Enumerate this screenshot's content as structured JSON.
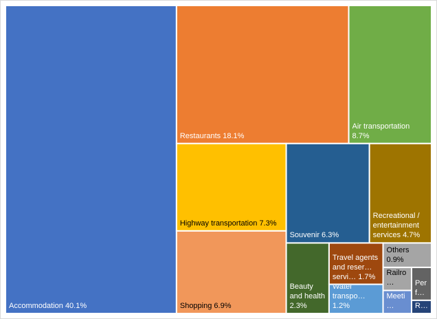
{
  "chart_data": {
    "type": "treemap",
    "categories": [
      "Accommodation",
      "Restaurants",
      "Air transportation",
      "Highway transportation",
      "Shopping",
      "Souvenir",
      "Recreational / entertainment services",
      "Beauty and health",
      "Travel agents and reser… servi…",
      "Water transpo…",
      "Others",
      "Railro…",
      "Meeti…",
      "Perf…",
      "R…"
    ],
    "values": [
      40.1,
      18.1,
      8.7,
      7.3,
      6.9,
      6.3,
      4.7,
      2.3,
      1.7,
      1.2,
      0.9,
      0.5,
      0.5,
      0.5,
      0.2
    ],
    "value_labels": [
      "40.1%",
      "18.1%",
      "8.7%",
      "7.3%",
      "6.9%",
      "6.3%",
      "4.7%",
      "2.3%",
      "1.7%",
      "1.2%",
      "0.9%",
      null,
      null,
      null,
      null
    ],
    "colors": [
      "#4472c4",
      "#ed7d31",
      "#70ad47",
      "#ffc000",
      "#f1975a",
      "#255e91",
      "#9e7400",
      "#43682b",
      "#9e480e",
      "#5b9bd5",
      "#a5a5a5",
      "#a5a5a5",
      "#698ed0",
      "#636363",
      "#264478"
    ]
  }
}
